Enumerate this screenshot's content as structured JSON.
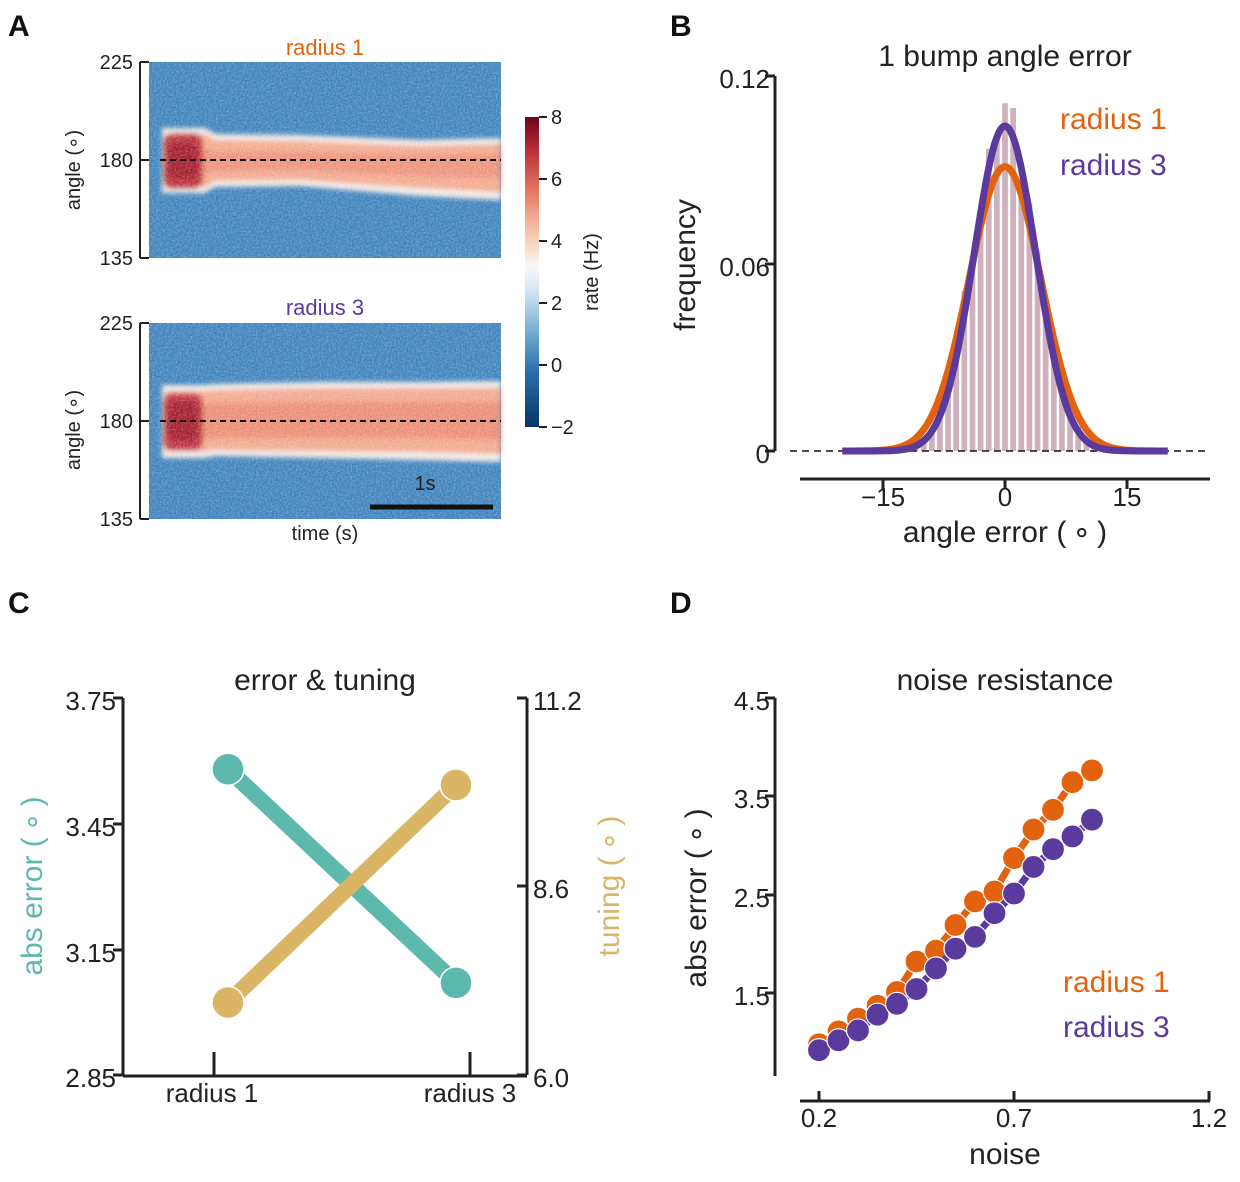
{
  "colors": {
    "radius1": "#E3620E",
    "radius3": "#5B3A9E",
    "abs_error": "#5DB8AE",
    "tuning": "#D9B565",
    "heat_low": "#1F5C9A",
    "heat_mid": "#F5F2EF",
    "heat_high": "#8C0E22",
    "hist": "#C7A3B3"
  },
  "panels": {
    "A": {
      "letter": "A"
    },
    "B": {
      "letter": "B"
    },
    "C": {
      "letter": "C"
    },
    "D": {
      "letter": "D"
    }
  },
  "chart_data": [
    {
      "panel": "A",
      "type": "heatmap",
      "subplots": [
        {
          "title": "radius 1",
          "title_color": "radius1",
          "ylabel": "angle (∘)",
          "yticks": [
            "225",
            "180",
            "135"
          ],
          "ylim": [
            135,
            225
          ],
          "bump_center": 180,
          "initial_width_deg": 12,
          "sustained_width_deg": 9,
          "initial_rate": 7,
          "sustained_rate": 3.5
        },
        {
          "title": "radius 3",
          "title_color": "radius3",
          "ylabel": "angle (∘)",
          "yticks": [
            "225",
            "180",
            "135"
          ],
          "ylim": [
            135,
            225
          ],
          "bump_center": 180,
          "initial_width_deg": 12,
          "sustained_width_deg": 12,
          "initial_rate": 7,
          "sustained_rate": 4.5
        }
      ],
      "xlabel": "time (s)",
      "scalebar_label": "1s",
      "colorbar": {
        "label": "rate (Hz)",
        "ticks": [
          "8",
          "6",
          "4",
          "2",
          "0",
          "−2"
        ],
        "range": [
          -2,
          8
        ]
      }
    },
    {
      "panel": "B",
      "type": "line",
      "title": "1 bump angle error",
      "xlabel": "angle error ( ∘ )",
      "ylabel": "frequency",
      "xlim": [
        -25,
        25
      ],
      "ylim": [
        0,
        0.12
      ],
      "xticks": [
        "−15",
        "0",
        "15"
      ],
      "yticks": [
        "0",
        "0.06",
        "0.12"
      ],
      "baseline": 0,
      "series": [
        {
          "name": "radius 1",
          "color": "radius1",
          "mean": 0,
          "sd": 4.4,
          "peak": 0.091
        },
        {
          "name": "radius 3",
          "color": "radius3",
          "mean": 0,
          "sd": 3.8,
          "peak": 0.104
        }
      ],
      "histogram": {
        "bin_width": 1,
        "range": [
          -12,
          12
        ],
        "sd": 3.9,
        "peak": 0.107
      }
    },
    {
      "panel": "C",
      "type": "line",
      "title": "error & tuning",
      "categories": [
        "radius 1",
        "radius 3"
      ],
      "ylabel_left": "abs error ( ∘ )",
      "ylabel_right": "tuning ( ∘ )",
      "ylim_left": [
        2.85,
        3.75
      ],
      "ylim_right": [
        6.0,
        11.2
      ],
      "yticks_left": [
        "3.75",
        "3.45",
        "3.15",
        "2.85"
      ],
      "yticks_right": [
        "11.2",
        "8.6",
        "6.0"
      ],
      "series": [
        {
          "name": "abs error",
          "axis": "left",
          "color": "abs_error",
          "values": [
            3.58,
            3.07
          ]
        },
        {
          "name": "tuning",
          "axis": "right",
          "color": "tuning",
          "values": [
            7.0,
            10.0
          ]
        }
      ]
    },
    {
      "panel": "D",
      "type": "line",
      "title": "noise resistance",
      "xlabel": "noise",
      "ylabel": "abs error ( ∘ )",
      "xlim": [
        0.2,
        1.2
      ],
      "ylim": [
        0.7,
        4.5
      ],
      "xticks": [
        "0.2",
        "0.7",
        "1.2"
      ],
      "yticks": [
        "4.5",
        "3.5",
        "2.5",
        "1.5"
      ],
      "x": [
        0.2,
        0.25,
        0.3,
        0.35,
        0.4,
        0.45,
        0.5,
        0.55,
        0.6,
        0.65,
        0.7,
        0.75,
        0.8,
        0.85,
        0.9
      ],
      "series": [
        {
          "name": "radius 1",
          "color": "radius1",
          "values": [
            0.98,
            1.11,
            1.24,
            1.37,
            1.51,
            1.82,
            1.93,
            2.19,
            2.43,
            2.53,
            2.87,
            3.16,
            3.36,
            3.64,
            3.76
          ]
        },
        {
          "name": "radius 3",
          "color": "radius3",
          "values": [
            0.92,
            1.02,
            1.12,
            1.28,
            1.39,
            1.54,
            1.75,
            1.95,
            2.07,
            2.31,
            2.51,
            2.78,
            2.96,
            3.09,
            3.26
          ]
        }
      ]
    }
  ]
}
